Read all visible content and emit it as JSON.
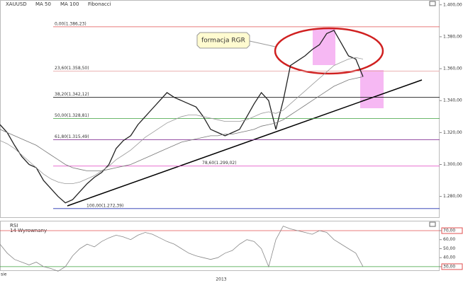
{
  "chart_data": [
    {
      "type": "line",
      "symbol": "XAUUSD",
      "fibonacci": "Fibonacci",
      "annotation": "formacja RGR",
      "ylim": [
        1267,
        1403
      ],
      "yticks": [
        {
          "value": 1400,
          "label": "1.400,00"
        },
        {
          "value": 1380,
          "label": "1.380,00"
        },
        {
          "value": 1360,
          "label": "1.360,00"
        },
        {
          "value": 1340,
          "label": "1.340,00"
        },
        {
          "value": 1320,
          "label": "1.320,00"
        },
        {
          "value": 1300,
          "label": "1.300,00"
        },
        {
          "value": 1280,
          "label": "1.280,00"
        }
      ],
      "fib_levels": [
        {
          "label": "0,00(1.386,23)",
          "value": 1386.23,
          "color": "#e05050"
        },
        {
          "label": "23,60(1.358,50)",
          "value": 1358.5,
          "color": "#e8a8a8"
        },
        {
          "label": "38,20(1.342,12)",
          "value": 1342.12,
          "color": "#222222"
        },
        {
          "label": "50,00(1.328,81)",
          "value": 1328.81,
          "color": "#3aa03a"
        },
        {
          "label": "61,80(1.315,49)",
          "value": 1315.49,
          "color": "#8a3a9a"
        },
        {
          "label": "78,60(1.299,02)",
          "value": 1299.02,
          "color": "#e040c0"
        },
        {
          "label": "100,00(1.272,39)",
          "value": 1272.39,
          "color": "#2030b0"
        }
      ],
      "series": [
        {
          "name": "Price",
          "color": "#222222",
          "values": [
            1325,
            1320,
            1312,
            1305,
            1300,
            1298,
            1290,
            1285,
            1280,
            1276,
            1278,
            1283,
            1288,
            1292,
            1295,
            1300,
            1310,
            1315,
            1318,
            1325,
            1330,
            1335,
            1340,
            1345,
            1342,
            1340,
            1338,
            1336,
            1330,
            1322,
            1320,
            1318,
            1320,
            1322,
            1330,
            1338,
            1345,
            1340,
            1322,
            1340,
            1362,
            1365,
            1368,
            1372,
            1375,
            1382,
            1384,
            1376,
            1368,
            1366,
            1355
          ]
        },
        {
          "name": "MA 50",
          "color": "#999999",
          "values": [
            1315,
            1313,
            1310,
            1306,
            1302,
            1298,
            1294,
            1291,
            1289,
            1288,
            1288,
            1289,
            1291,
            1293,
            1296,
            1299,
            1303,
            1306,
            1309,
            1313,
            1317,
            1320,
            1323,
            1326,
            1328,
            1330,
            1331,
            1331,
            1330,
            1329,
            1328,
            1327,
            1327,
            1327,
            1328,
            1330,
            1332,
            1333,
            1332,
            1334,
            1338,
            1342,
            1346,
            1350,
            1354,
            1358,
            1362,
            1364,
            1366,
            1367,
            1366
          ]
        },
        {
          "name": "MA 100",
          "color": "#777777",
          "values": [
            1322,
            1320,
            1318,
            1316,
            1314,
            1312,
            1309,
            1306,
            1303,
            1300,
            1298,
            1297,
            1296,
            1296,
            1296,
            1297,
            1298,
            1299,
            1300,
            1302,
            1304,
            1306,
            1308,
            1310,
            1312,
            1314,
            1315,
            1316,
            1317,
            1318,
            1318,
            1319,
            1319,
            1320,
            1321,
            1322,
            1324,
            1325,
            1326,
            1328,
            1331,
            1334,
            1337,
            1340,
            1343,
            1346,
            1349,
            1351,
            1353,
            1354,
            1355
          ]
        }
      ]
    },
    {
      "type": "line",
      "title": "RSI",
      "subtitle": "14 Wyrownany",
      "ylim": [
        26,
        81
      ],
      "yticks": [
        {
          "value": 70,
          "label": "70,00"
        },
        {
          "value": 60,
          "label": "60,00"
        },
        {
          "value": 50,
          "label": "50,00"
        },
        {
          "value": 40,
          "label": "40,00"
        },
        {
          "value": 30,
          "label": "30,00"
        }
      ],
      "x_labels": [
        "sie",
        "2013"
      ],
      "series": [
        {
          "name": "RSI",
          "color": "#888888",
          "values": [
            55,
            45,
            38,
            35,
            32,
            35,
            30,
            28,
            25,
            30,
            42,
            50,
            55,
            52,
            58,
            62,
            65,
            63,
            60,
            65,
            68,
            66,
            62,
            58,
            55,
            50,
            45,
            42,
            40,
            38,
            40,
            45,
            48,
            55,
            60,
            58,
            50,
            30,
            60,
            75,
            72,
            70,
            68,
            66,
            70,
            68,
            60,
            55,
            50,
            45,
            30
          ]
        }
      ]
    }
  ]
}
